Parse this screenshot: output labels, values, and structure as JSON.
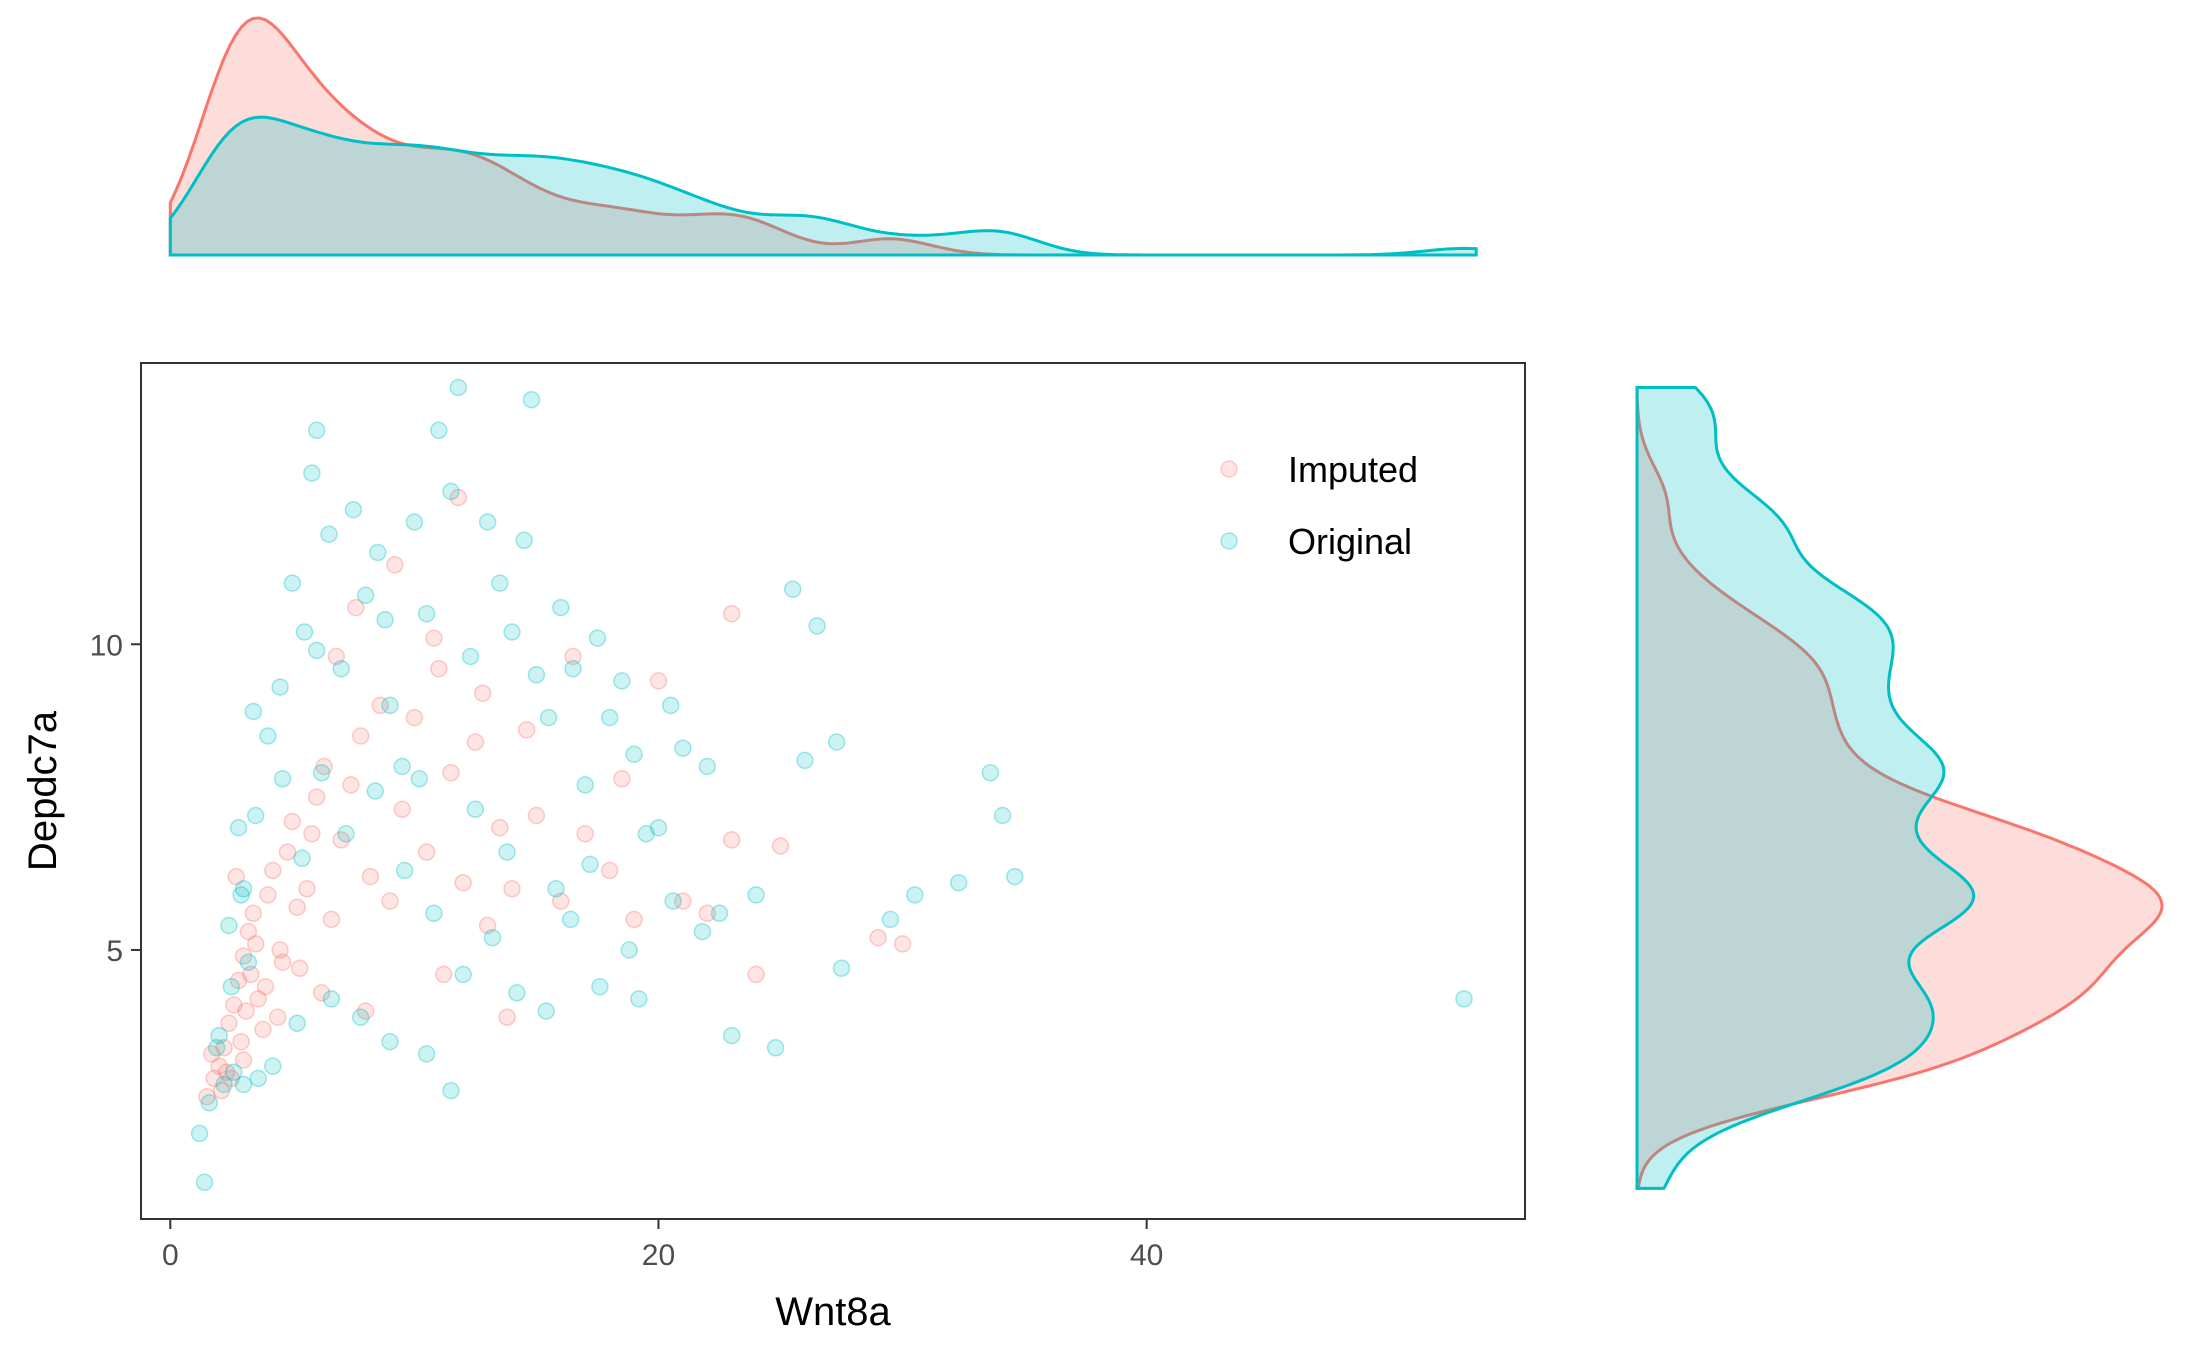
{
  "chart_data": {
    "type": "scatter",
    "title": "",
    "xlabel": "Wnt8a",
    "ylabel": "Depdc7a",
    "xlim": [
      -1.2,
      55.5
    ],
    "ylim": [
      0.6,
      14.6
    ],
    "x_ticks": [
      0,
      20,
      40
    ],
    "y_ticks": [
      5,
      10
    ],
    "x_tick_labels": [
      "0",
      "20",
      "40"
    ],
    "y_tick_labels": [
      "5",
      "10"
    ],
    "legend": {
      "position": "top-right"
    },
    "marginals": {
      "top": "density of Wnt8a",
      "right": "density of Depdc7a"
    },
    "colors": {
      "Imputed": "#F8766D",
      "Original": "#00BFC4"
    },
    "point_alpha": 0.2,
    "series": [
      {
        "name": "Imputed",
        "points": [
          [
            1.5,
            2.6
          ],
          [
            1.8,
            2.9
          ],
          [
            2.0,
            3.1
          ],
          [
            2.2,
            3.4
          ],
          [
            2.4,
            3.8
          ],
          [
            2.6,
            4.1
          ],
          [
            2.8,
            4.5
          ],
          [
            3.0,
            4.9
          ],
          [
            3.2,
            5.3
          ],
          [
            3.4,
            5.6
          ],
          [
            3.6,
            4.2
          ],
          [
            3.8,
            3.7
          ],
          [
            4.0,
            5.9
          ],
          [
            4.2,
            6.3
          ],
          [
            4.5,
            5.0
          ],
          [
            4.8,
            6.6
          ],
          [
            5.0,
            7.1
          ],
          [
            5.3,
            4.7
          ],
          [
            5.6,
            6.0
          ],
          [
            6.0,
            7.5
          ],
          [
            6.3,
            8.0
          ],
          [
            6.6,
            5.5
          ],
          [
            7.0,
            6.8
          ],
          [
            7.4,
            7.7
          ],
          [
            7.8,
            8.5
          ],
          [
            8.2,
            6.2
          ],
          [
            8.6,
            9.0
          ],
          [
            9.0,
            5.8
          ],
          [
            9.5,
            7.3
          ],
          [
            10.0,
            8.8
          ],
          [
            10.5,
            6.6
          ],
          [
            11.0,
            9.6
          ],
          [
            11.5,
            7.9
          ],
          [
            12.0,
            6.1
          ],
          [
            12.5,
            8.4
          ],
          [
            13.0,
            5.4
          ],
          [
            13.5,
            7.0
          ],
          [
            14.0,
            6.0
          ],
          [
            15.0,
            7.2
          ],
          [
            16.0,
            5.8
          ],
          [
            17.0,
            6.9
          ],
          [
            18.0,
            6.3
          ],
          [
            19.0,
            5.5
          ],
          [
            20.0,
            9.4
          ],
          [
            21.0,
            5.8
          ],
          [
            22.0,
            5.6
          ],
          [
            23.0,
            10.5
          ],
          [
            23.0,
            6.8
          ],
          [
            24.0,
            4.6
          ],
          [
            25.0,
            6.7
          ],
          [
            29.0,
            5.2
          ],
          [
            30.0,
            5.1
          ],
          [
            11.8,
            12.4
          ],
          [
            2.1,
            2.7
          ],
          [
            2.3,
            3.0
          ],
          [
            2.9,
            3.5
          ],
          [
            3.1,
            4.0
          ],
          [
            3.3,
            4.6
          ],
          [
            3.5,
            5.1
          ],
          [
            3.9,
            4.4
          ],
          [
            4.4,
            3.9
          ],
          [
            5.2,
            5.7
          ],
          [
            5.8,
            6.9
          ],
          [
            6.8,
            9.8
          ],
          [
            7.6,
            10.6
          ],
          [
            9.2,
            11.3
          ],
          [
            10.8,
            10.1
          ],
          [
            12.8,
            9.2
          ],
          [
            14.6,
            8.6
          ],
          [
            16.5,
            9.8
          ],
          [
            18.5,
            7.8
          ],
          [
            3.0,
            3.2
          ],
          [
            2.5,
            2.9
          ],
          [
            4.6,
            4.8
          ],
          [
            6.2,
            4.3
          ],
          [
            8.0,
            4.0
          ],
          [
            11.2,
            4.6
          ],
          [
            13.8,
            3.9
          ],
          [
            1.7,
            3.3
          ],
          [
            2.7,
            6.2
          ]
        ]
      },
      {
        "name": "Original",
        "points": [
          [
            1.2,
            2.0
          ],
          [
            1.4,
            1.2
          ],
          [
            1.6,
            2.5
          ],
          [
            2.0,
            3.6
          ],
          [
            2.5,
            4.4
          ],
          [
            3.0,
            6.0
          ],
          [
            3.5,
            7.2
          ],
          [
            4.0,
            8.5
          ],
          [
            4.5,
            9.3
          ],
          [
            5.0,
            11.0
          ],
          [
            5.5,
            10.2
          ],
          [
            5.8,
            12.8
          ],
          [
            6.0,
            13.5
          ],
          [
            6.5,
            11.8
          ],
          [
            7.0,
            9.6
          ],
          [
            7.5,
            12.2
          ],
          [
            8.0,
            10.8
          ],
          [
            8.5,
            11.5
          ],
          [
            9.0,
            9.0
          ],
          [
            9.5,
            8.0
          ],
          [
            10.0,
            12.0
          ],
          [
            10.5,
            10.5
          ],
          [
            11.0,
            13.5
          ],
          [
            11.5,
            12.5
          ],
          [
            11.8,
            14.2
          ],
          [
            12.3,
            9.8
          ],
          [
            13.0,
            12.0
          ],
          [
            13.5,
            11.0
          ],
          [
            14.0,
            10.2
          ],
          [
            14.5,
            11.7
          ],
          [
            14.8,
            14.0
          ],
          [
            15.0,
            9.5
          ],
          [
            15.5,
            8.8
          ],
          [
            16.0,
            10.6
          ],
          [
            16.5,
            9.6
          ],
          [
            17.0,
            7.7
          ],
          [
            17.5,
            10.1
          ],
          [
            18.0,
            8.8
          ],
          [
            18.5,
            9.4
          ],
          [
            19.0,
            8.2
          ],
          [
            19.5,
            6.9
          ],
          [
            20.0,
            7.0
          ],
          [
            20.5,
            9.0
          ],
          [
            21.0,
            8.3
          ],
          [
            22.0,
            8.0
          ],
          [
            22.5,
            5.6
          ],
          [
            23.0,
            3.6
          ],
          [
            24.0,
            5.9
          ],
          [
            24.8,
            3.4
          ],
          [
            25.5,
            10.9
          ],
          [
            26.0,
            8.1
          ],
          [
            26.5,
            10.3
          ],
          [
            27.3,
            8.4
          ],
          [
            27.5,
            4.7
          ],
          [
            29.5,
            5.5
          ],
          [
            30.5,
            5.9
          ],
          [
            32.3,
            6.1
          ],
          [
            33.6,
            7.9
          ],
          [
            34.1,
            7.2
          ],
          [
            34.6,
            6.2
          ],
          [
            53.0,
            4.2
          ],
          [
            11.5,
            2.7
          ],
          [
            10.5,
            3.3
          ],
          [
            9.0,
            3.5
          ],
          [
            7.8,
            3.9
          ],
          [
            6.6,
            4.2
          ],
          [
            5.2,
            3.8
          ],
          [
            4.2,
            3.1
          ],
          [
            3.6,
            2.9
          ],
          [
            3.0,
            2.8
          ],
          [
            2.6,
            3.0
          ],
          [
            2.2,
            2.8
          ],
          [
            1.9,
            3.4
          ],
          [
            2.4,
            5.4
          ],
          [
            2.8,
            7.0
          ],
          [
            3.4,
            8.9
          ],
          [
            4.6,
            7.8
          ],
          [
            5.4,
            6.5
          ],
          [
            6.2,
            7.9
          ],
          [
            7.2,
            6.9
          ],
          [
            8.4,
            7.6
          ],
          [
            9.6,
            6.3
          ],
          [
            10.8,
            5.6
          ],
          [
            12.0,
            4.6
          ],
          [
            13.2,
            5.2
          ],
          [
            14.2,
            4.3
          ],
          [
            15.4,
            4.0
          ],
          [
            16.4,
            5.5
          ],
          [
            17.6,
            4.4
          ],
          [
            19.2,
            4.2
          ],
          [
            20.6,
            5.8
          ],
          [
            21.8,
            5.3
          ],
          [
            12.5,
            7.3
          ],
          [
            13.8,
            6.6
          ],
          [
            15.8,
            6.0
          ],
          [
            17.2,
            6.4
          ],
          [
            18.8,
            5.0
          ],
          [
            6.0,
            9.9
          ],
          [
            8.8,
            10.4
          ],
          [
            10.2,
            7.8
          ],
          [
            3.2,
            4.8
          ],
          [
            2.9,
            5.9
          ]
        ]
      }
    ]
  }
}
